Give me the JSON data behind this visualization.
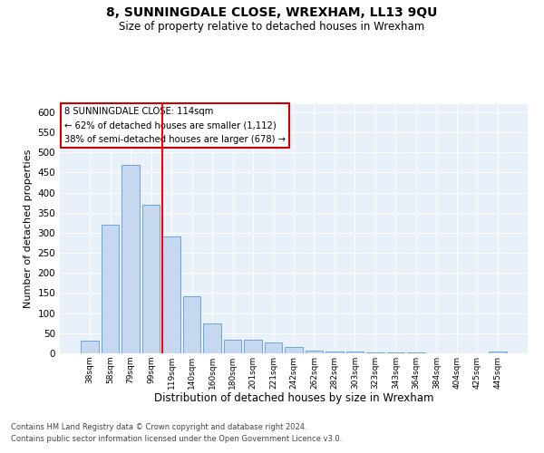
{
  "title": "8, SUNNINGDALE CLOSE, WREXHAM, LL13 9QU",
  "subtitle": "Size of property relative to detached houses in Wrexham",
  "xlabel": "Distribution of detached houses by size in Wrexham",
  "ylabel": "Number of detached properties",
  "categories": [
    "38sqm",
    "58sqm",
    "79sqm",
    "99sqm",
    "119sqm",
    "140sqm",
    "160sqm",
    "180sqm",
    "201sqm",
    "221sqm",
    "242sqm",
    "262sqm",
    "282sqm",
    "303sqm",
    "323sqm",
    "343sqm",
    "364sqm",
    "384sqm",
    "404sqm",
    "425sqm",
    "445sqm"
  ],
  "values": [
    32,
    320,
    470,
    370,
    290,
    143,
    75,
    33,
    33,
    28,
    16,
    7,
    5,
    5,
    2,
    2,
    2,
    0,
    0,
    0,
    5
  ],
  "bar_color": "#c5d8f0",
  "bar_edge_color": "#5b9bd5",
  "red_line_x": 4,
  "annotation_text_line1": "8 SUNNINGDALE CLOSE: 114sqm",
  "annotation_text_line2": "← 62% of detached houses are smaller (1,112)",
  "annotation_text_line3": "38% of semi-detached houses are larger (678) →",
  "annotation_box_color": "#ffffff",
  "annotation_box_edge_color": "#cc0000",
  "footer_line1": "Contains HM Land Registry data © Crown copyright and database right 2024.",
  "footer_line2": "Contains public sector information licensed under the Open Government Licence v3.0.",
  "background_color": "#e8f0fa",
  "ylim": [
    0,
    620
  ],
  "yticks": [
    0,
    50,
    100,
    150,
    200,
    250,
    300,
    350,
    400,
    450,
    500,
    550,
    600
  ]
}
